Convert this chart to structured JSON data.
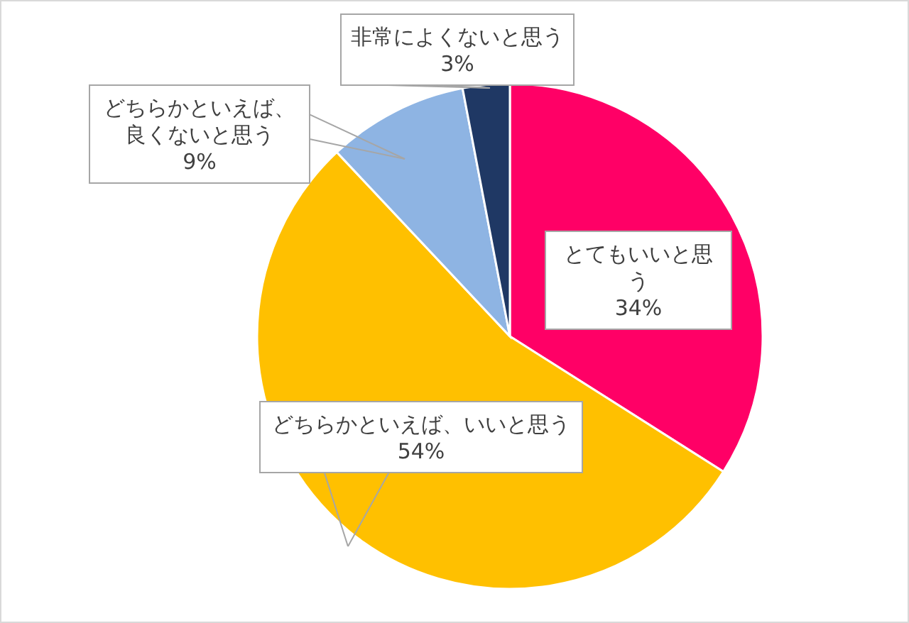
{
  "chart_data": {
    "type": "pie",
    "categories": [
      "とてもいいと思う",
      "どちらかといえば、いいと思う",
      "どちらかといえば、良くないと思う",
      "非常によくないと思う"
    ],
    "values": [
      34,
      54,
      9,
      3
    ],
    "colors": [
      "#ff0066",
      "#ffc000",
      "#8eb4e3",
      "#1f3864"
    ],
    "value_labels": [
      "34%",
      "54%",
      "9%",
      "3%"
    ]
  }
}
